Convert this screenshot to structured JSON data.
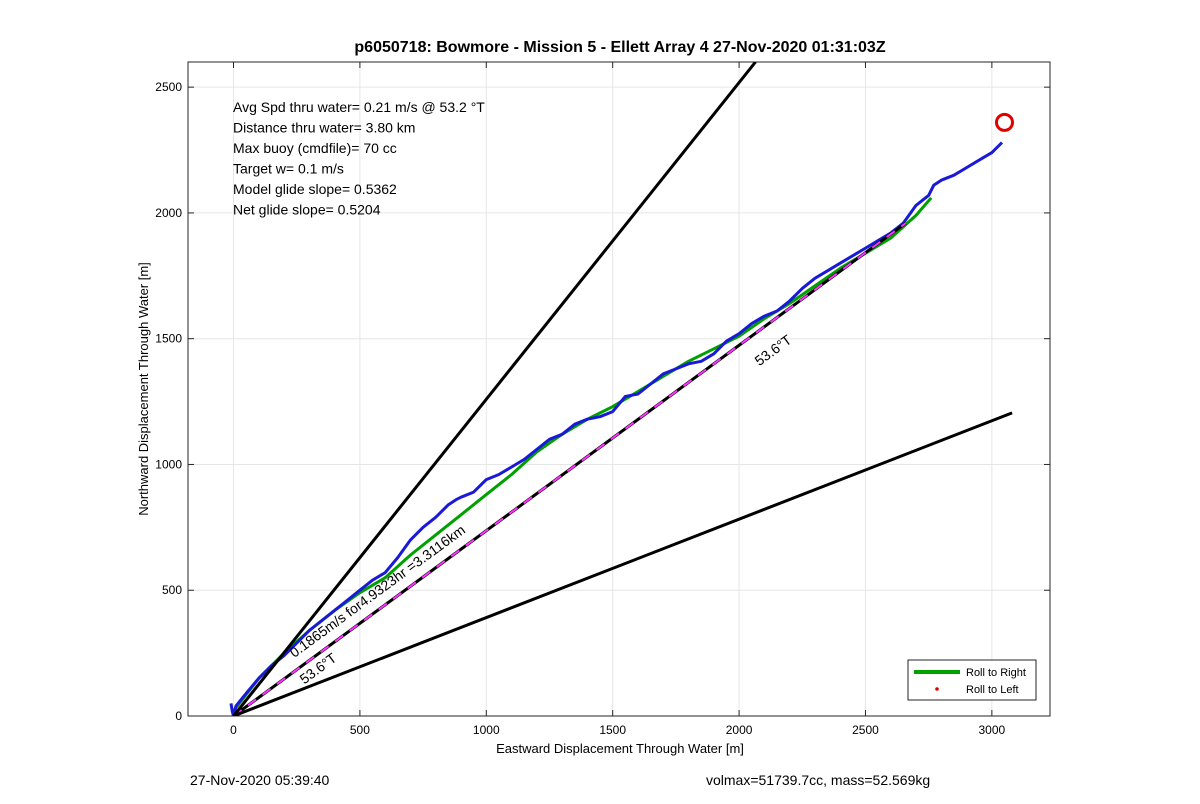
{
  "chart_data": {
    "type": "line",
    "title": "p6050718: Bowmore - Mission 5 - Ellett Array 4 27-Nov-2020 01:31:03Z",
    "xlabel": "Eastward Displacement Through Water [m]",
    "ylabel": "Northward Displacement Through Water [m]",
    "xlim": [
      -180,
      3230
    ],
    "ylim": [
      0,
      2600
    ],
    "xticks": [
      0,
      500,
      1000,
      1500,
      2000,
      2500,
      3000
    ],
    "yticks": [
      0,
      500,
      1000,
      1500,
      2000,
      2500
    ],
    "grid": true,
    "annotations": [
      "Avg Spd thru water=  0.21 m/s @  53.2 °T",
      "Distance thru water=  3.80 km",
      "Max buoy (cmdfile)= 70 cc",
      "Target w= 0.1 m/s",
      "Model glide slope= 0.5362",
      "Net glide slope= 0.5204"
    ],
    "line_labels": {
      "heading_upper": "53.6°T",
      "heading_lower": "53.6°T",
      "speed": "0.1865m/s for4.9323hr =3.3116km"
    },
    "legend": {
      "position": "bottom-right",
      "entries": [
        "Roll to Right",
        "Roll to Left"
      ]
    },
    "series": [
      {
        "name": "Roll to Right",
        "color": "#00a000",
        "x": [
          0,
          100,
          200,
          300,
          400,
          500,
          600,
          700,
          800,
          900,
          1000,
          1100,
          1200,
          1300,
          1400,
          1500,
          1600,
          1700,
          1800,
          1900,
          2000,
          2100,
          2200,
          2300,
          2400,
          2500,
          2600,
          2700,
          2760
        ],
        "y": [
          20,
          150,
          250,
          340,
          420,
          490,
          550,
          640,
          720,
          800,
          880,
          960,
          1050,
          1120,
          1180,
          1230,
          1290,
          1350,
          1410,
          1460,
          1510,
          1580,
          1640,
          1710,
          1780,
          1840,
          1900,
          1990,
          2060
        ]
      },
      {
        "name": "Roll to Left",
        "color": "#e00000",
        "x": [
          3050
        ],
        "y": [
          2360
        ]
      },
      {
        "name": "",
        "color": "#1a1ad6",
        "x": [
          -10,
          -5,
          0,
          10,
          50,
          100,
          150,
          200,
          250,
          300,
          350,
          400,
          450,
          500,
          550,
          600,
          650,
          700,
          750,
          800,
          850,
          880,
          900,
          950,
          1000,
          1050,
          1100,
          1150,
          1200,
          1250,
          1300,
          1350,
          1400,
          1450,
          1500,
          1550,
          1600,
          1650,
          1700,
          1750,
          1800,
          1850,
          1900,
          1950,
          2000,
          2050,
          2100,
          2150,
          2200,
          2250,
          2300,
          2350,
          2400,
          2450,
          2500,
          2550,
          2600,
          2650,
          2700,
          2750,
          2770,
          2800,
          2850,
          2900,
          2950,
          3000,
          3040
        ],
        "y": [
          50,
          20,
          0,
          40,
          90,
          150,
          200,
          240,
          290,
          340,
          380,
          420,
          460,
          500,
          540,
          570,
          630,
          700,
          750,
          790,
          840,
          860,
          870,
          890,
          940,
          960,
          990,
          1020,
          1060,
          1100,
          1120,
          1160,
          1180,
          1190,
          1210,
          1270,
          1280,
          1320,
          1360,
          1380,
          1400,
          1410,
          1440,
          1490,
          1520,
          1560,
          1590,
          1610,
          1650,
          1700,
          1740,
          1770,
          1800,
          1830,
          1860,
          1890,
          1920,
          1960,
          2030,
          2070,
          2110,
          2130,
          2150,
          2180,
          2210,
          2240,
          2280
        ]
      },
      {
        "name": "",
        "color": "#000000",
        "x": [
          0,
          2660
        ],
        "y": [
          0,
          1960
        ]
      },
      {
        "name": "",
        "color": "#ff33ff",
        "x": [
          0,
          2660
        ],
        "y": [
          0,
          1960
        ]
      },
      {
        "name": "",
        "color": "#000000",
        "x": [
          0,
          2065
        ],
        "y": [
          0,
          2600
        ]
      },
      {
        "name": "",
        "color": "#000000",
        "x": [
          0,
          3080
        ],
        "y": [
          0,
          1205
        ]
      }
    ]
  },
  "footer": {
    "left": "27-Nov-2020 05:39:40",
    "right": "volmax=51739.7cc, mass=52.569kg"
  }
}
